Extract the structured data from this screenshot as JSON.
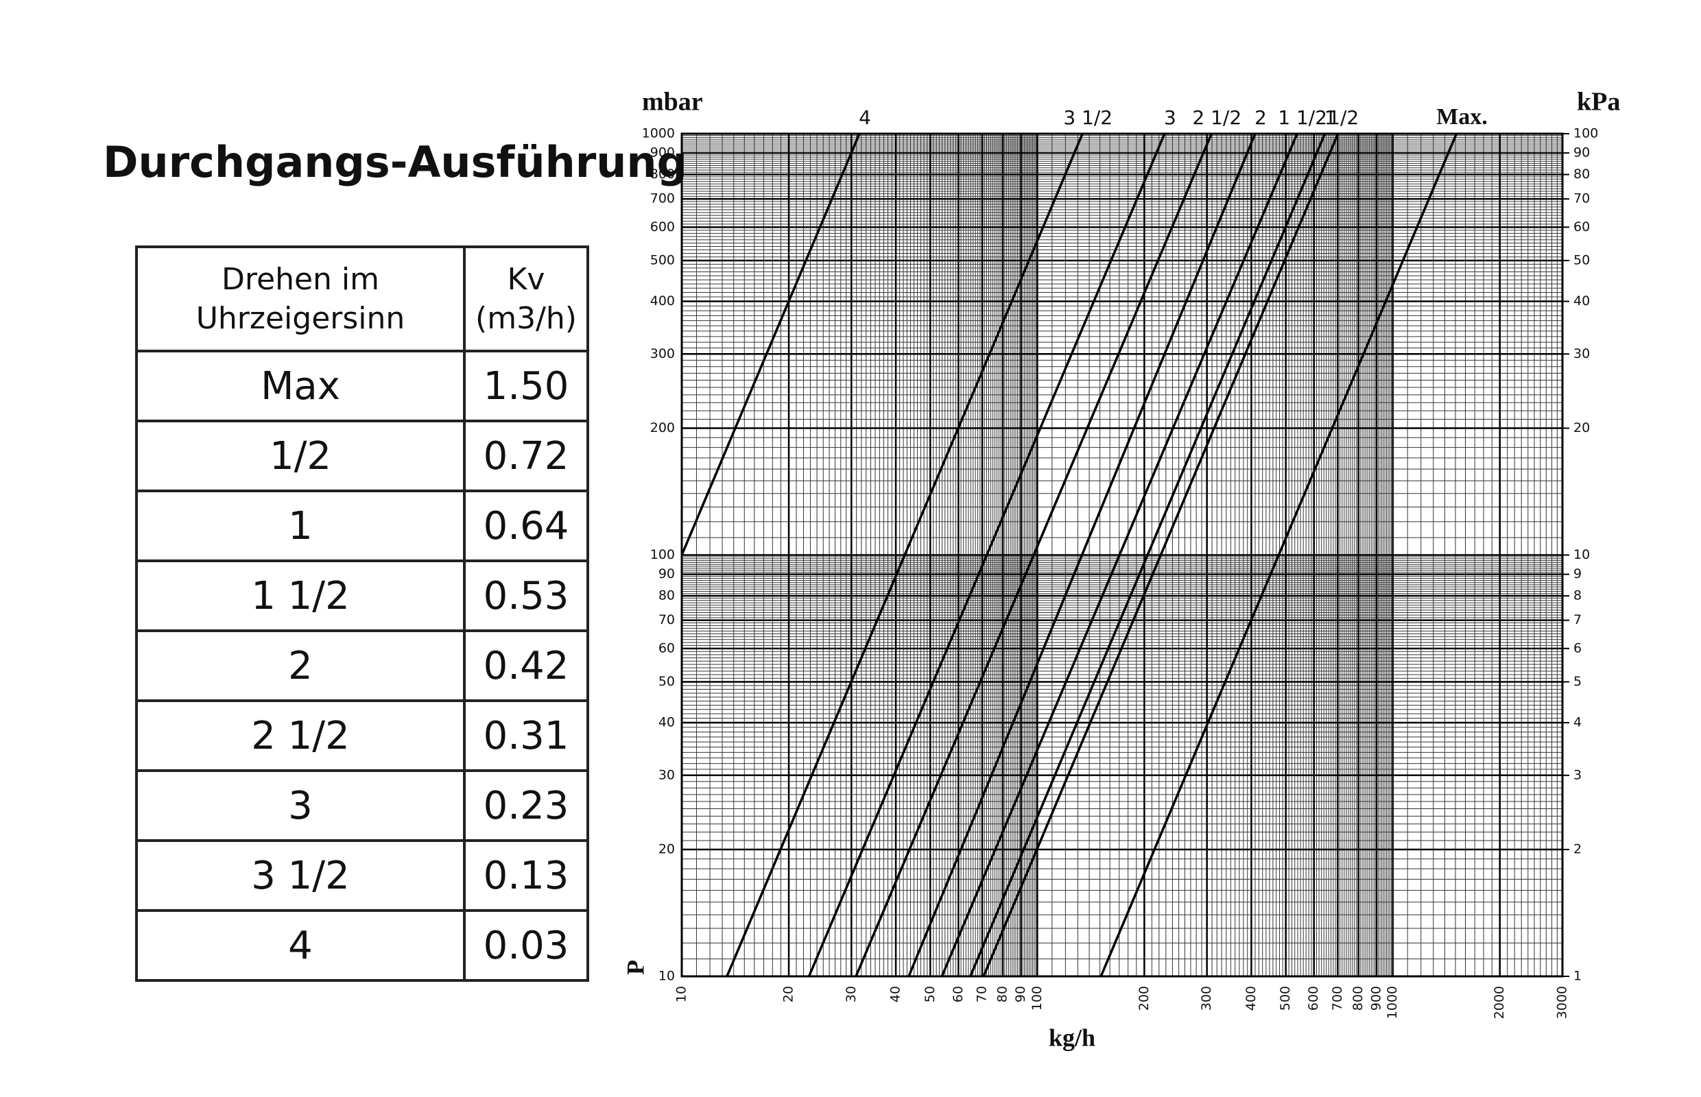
{
  "title": "Durchgangs-Ausführung",
  "table": {
    "header": [
      "Drehen im Uhrzeigersinn",
      "Kv (m3/h)"
    ],
    "rows": [
      [
        "Max",
        "1.50"
      ],
      [
        "1/2",
        "0.72"
      ],
      [
        "1",
        "0.64"
      ],
      [
        "1 1/2",
        "0.53"
      ],
      [
        "2",
        "0.42"
      ],
      [
        "2 1/2",
        "0.31"
      ],
      [
        "3",
        "0.23"
      ],
      [
        "3 1/2",
        "0.13"
      ],
      [
        "4",
        "0.03"
      ]
    ]
  },
  "chart_data": {
    "type": "line",
    "x_label": "kg/h",
    "y_label": "P",
    "y_unit": "mbar",
    "y2_unit": "kPa",
    "log_x": true,
    "log_y": true,
    "grid": true,
    "minor_grid": true,
    "color": "#000000",
    "xlim": [
      10,
      3000
    ],
    "ylim": [
      10,
      1000
    ],
    "y2lim": [
      1,
      100
    ],
    "xticks": [
      10,
      20,
      30,
      40,
      50,
      60,
      70,
      80,
      90,
      100,
      200,
      300,
      400,
      500,
      600,
      700,
      800,
      900,
      1000,
      2000,
      3000
    ],
    "yticks": [
      10,
      20,
      30,
      40,
      50,
      60,
      70,
      80,
      90,
      100,
      200,
      300,
      400,
      500,
      600,
      700,
      800,
      900,
      1000
    ],
    "y2ticks": [
      1,
      2,
      3,
      4,
      5,
      6,
      7,
      8,
      9,
      10,
      20,
      30,
      40,
      50,
      60,
      70,
      80,
      90,
      100
    ],
    "series": [
      {
        "name": "4",
        "color": "#000000",
        "x": [
          10,
          31.6
        ],
        "values": [
          100,
          1000
        ]
      },
      {
        "name": "3 1/2",
        "color": "#000000",
        "x": [
          13.4,
          134
        ],
        "values": [
          10,
          1000
        ]
      },
      {
        "name": "3",
        "color": "#000000",
        "x": [
          22.8,
          228
        ],
        "values": [
          10,
          1000
        ]
      },
      {
        "name": "2 1/2",
        "color": "#000000",
        "x": [
          30.9,
          309
        ],
        "values": [
          10,
          1000
        ]
      },
      {
        "name": "2",
        "color": "#000000",
        "x": [
          43.5,
          410
        ],
        "values": [
          10,
          1000
        ]
      },
      {
        "name": "1 1/2",
        "color": "#000000",
        "x": [
          53.9,
          538
        ],
        "values": [
          10,
          1000
        ]
      },
      {
        "name": "1",
        "color": "#000000",
        "x": [
          64.8,
          644
        ],
        "values": [
          10,
          1000
        ]
      },
      {
        "name": "1/2",
        "color": "#000000",
        "x": [
          70.6,
          701
        ],
        "values": [
          10,
          1000
        ]
      },
      {
        "name": "Max.",
        "color": "#000000",
        "x": [
          151,
          1510
        ],
        "values": [
          10,
          1000
        ]
      }
    ]
  }
}
